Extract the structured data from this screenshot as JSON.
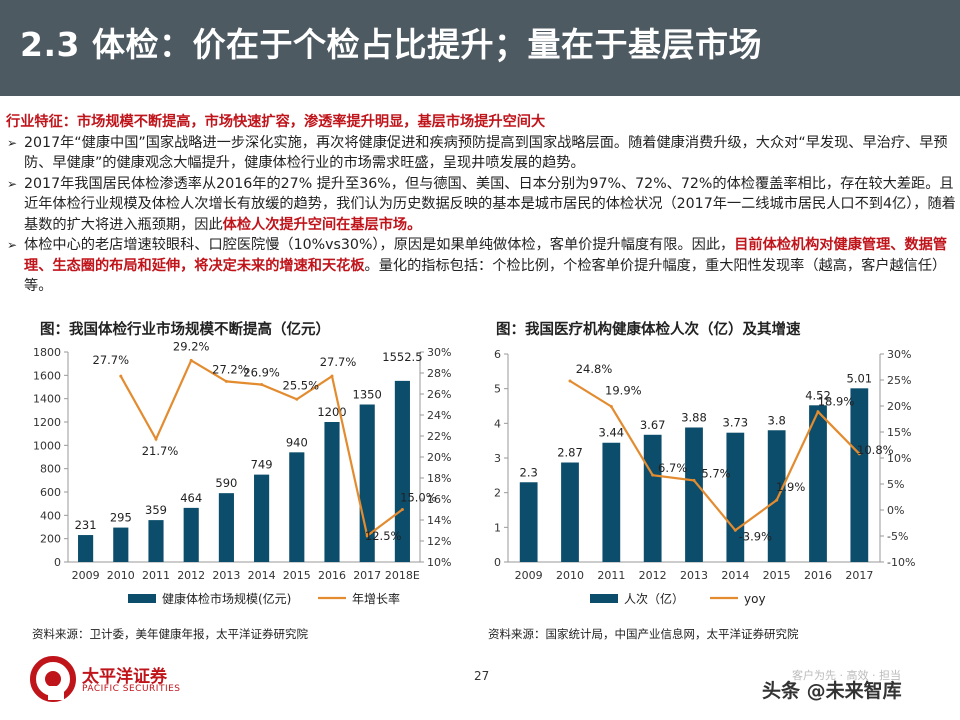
{
  "header": {
    "title": "2.3 体检：价在于个检占比提升；量在于基层市场"
  },
  "feature_line": "行业特征：市场规模不断提高，市场快速扩容，渗透率提升明显，基层市场提升空间大",
  "bullets": {
    "b1": "2017年“健康中国”国家战略进一步深化实施，再次将健康促进和疾病预防提高到国家战略层面。随着健康消费升级，大众对“早发现、早治疗、早预防、早健康”的健康观念大幅提升，健康体检行业的市场需求旺盛，呈现井喷发展的趋势。",
    "b2_pre": "2017年我国居民体检渗透率从2016年的27% 提升至36%，但与德国、美国、日本分别为97%、72%、72%的体检覆盖率相比，存在较大差距。且近年体检行业规模及体检人次增长有放缓的趋势，我们认为历史数据反映的基本是城市居民的体检状况（2017年一二线城市居民人口不到4亿），随着基数的扩大将进入瓶颈期，因此",
    "b2_red": "体检人次提升空间在基层市场。",
    "b3_pre": "体检中心的老店增速较眼科、口腔医院慢（10%vs30%），原因是如果单纯做体检，客单价提升幅度有限。因此，",
    "b3_red": "目前体检机构对健康管理、数据管理、生态圈的布局和延伸，将决定未来的增速和天花板",
    "b3_post": "。量化的指标包括：个检比例，个检客单价提升幅度，重大阳性发现率（越高，客户越信任）等。"
  },
  "left_chart_title": "图：我国体检行业市场规模不断提高（亿元）",
  "left_source": "资料来源：卫计委，美年健康年报，太平洋证券研究院",
  "right_chart_title": "图：我国医疗机构健康体检人次（亿）及其增速",
  "right_source": "资料来源：国家统计局，中国产业信息网，太平洋证券研究院",
  "footer": {
    "company": "太平洋证券",
    "company_en": "PACIFIC SECURITIES",
    "page": "27",
    "tagline": "客户为先 · 高效 · 担当",
    "watermark": "头条 @未来智库"
  },
  "colors": {
    "bar": "#0b4d6b",
    "line": "#e38b2f",
    "header_bg": "#4d5a62",
    "highlight": "#c0141b"
  },
  "chart_data": [
    {
      "type": "bar+line",
      "title": "图：我国体检行业市场规模不断提高（亿元）",
      "categories": [
        "2009",
        "2010",
        "2011",
        "2012",
        "2013",
        "2014",
        "2015",
        "2016",
        "2017",
        "2018E"
      ],
      "series": [
        {
          "name": "健康体检市场规模(亿元)",
          "type": "bar",
          "axis": "left",
          "values": [
            231,
            295,
            359,
            464,
            590,
            749,
            940,
            1200,
            1350,
            1552.5
          ],
          "labels": [
            "231",
            "295",
            "359",
            "464",
            "590",
            "749",
            "940",
            "1200",
            "1350",
            "1552.5"
          ]
        },
        {
          "name": "年增长率",
          "type": "line",
          "axis": "right",
          "values": [
            null,
            27.7,
            21.7,
            29.2,
            27.2,
            26.9,
            25.5,
            27.7,
            12.5,
            15.0
          ],
          "labels": [
            "",
            "27.7%",
            "21.7%",
            "29.2%",
            "27.2%",
            "26.9%",
            "25.5%",
            "27.7%",
            "12.5%",
            "15.0%"
          ]
        }
      ],
      "y_left": {
        "min": 0,
        "max": 1800,
        "ticks": [
          "0",
          "200",
          "400",
          "600",
          "800",
          "1000",
          "1200",
          "1400",
          "1600",
          "1800"
        ]
      },
      "y_right": {
        "min": 10,
        "max": 30,
        "ticks": [
          "10%",
          "12%",
          "14%",
          "16%",
          "18%",
          "20%",
          "22%",
          "24%",
          "26%",
          "28%",
          "30%"
        ]
      },
      "legend": "bottom"
    },
    {
      "type": "bar+line",
      "title": "图：我国医疗机构健康体检人次（亿）及其增速",
      "categories": [
        "2009",
        "2010",
        "2011",
        "2012",
        "2013",
        "2014",
        "2015",
        "2016",
        "2017"
      ],
      "series": [
        {
          "name": "人次（亿）",
          "type": "bar",
          "axis": "left",
          "values": [
            2.3,
            2.87,
            3.44,
            3.67,
            3.88,
            3.73,
            3.8,
            4.52,
            5.01
          ],
          "labels": [
            "2.3",
            "2.87",
            "3.44",
            "3.67",
            "3.88",
            "3.73",
            "3.8",
            "4.52",
            "5.01"
          ]
        },
        {
          "name": "yoy",
          "type": "line",
          "axis": "right",
          "values": [
            null,
            24.8,
            19.9,
            6.7,
            5.7,
            -3.9,
            1.9,
            18.9,
            10.8
          ],
          "labels": [
            "",
            "24.8%",
            "19.9%",
            "6.7%",
            "5.7%",
            "-3.9%",
            "1.9%",
            "18.9%",
            "10.8%"
          ]
        }
      ],
      "y_left": {
        "min": 0,
        "max": 6,
        "ticks": [
          "0",
          "1",
          "2",
          "3",
          "4",
          "5",
          "6"
        ]
      },
      "y_right": {
        "min": -10,
        "max": 30,
        "ticks": [
          "-10%",
          "-5%",
          "0%",
          "5%",
          "10%",
          "15%",
          "20%",
          "25%",
          "30%"
        ]
      },
      "legend": "bottom"
    }
  ]
}
